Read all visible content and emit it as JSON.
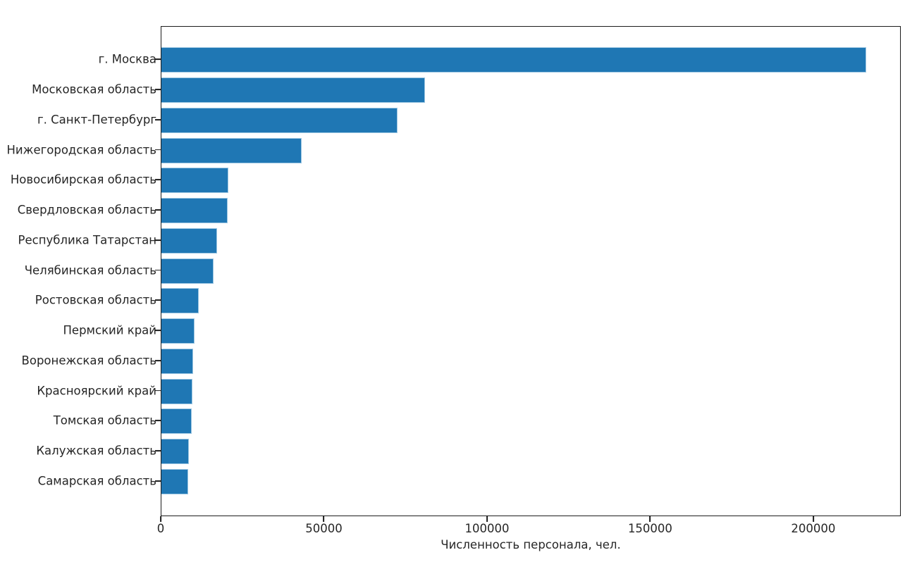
{
  "colors": {
    "bar_fill": "#1f77b4",
    "bar_edge": "#9ec7e2",
    "text": "#262626",
    "spine": "#1c1c1c",
    "background": "#ffffff"
  },
  "chart_data": {
    "type": "bar",
    "orientation": "horizontal",
    "title": "",
    "xlabel": "Численность персонала, чел.",
    "ylabel": "",
    "categories": [
      "г. Москва",
      "Московская область",
      "г. Санкт-Петербург",
      "Нижегородская область",
      "Новосибирская область",
      "Свердловская область",
      "Республика Татарстан",
      "Челябинская область",
      "Ростовская область",
      "Пермский край",
      "Воронежская область",
      "Красноярский край",
      "Томская область",
      "Калужская область",
      "Самарская область"
    ],
    "values": [
      216000,
      80800,
      72400,
      43000,
      20500,
      20300,
      17100,
      16000,
      11400,
      10200,
      9700,
      9500,
      9300,
      8400,
      8200
    ],
    "xlim": [
      0,
      226800
    ],
    "xticks": [
      0,
      50000,
      100000,
      150000,
      200000
    ],
    "grid": false,
    "legend": null
  }
}
